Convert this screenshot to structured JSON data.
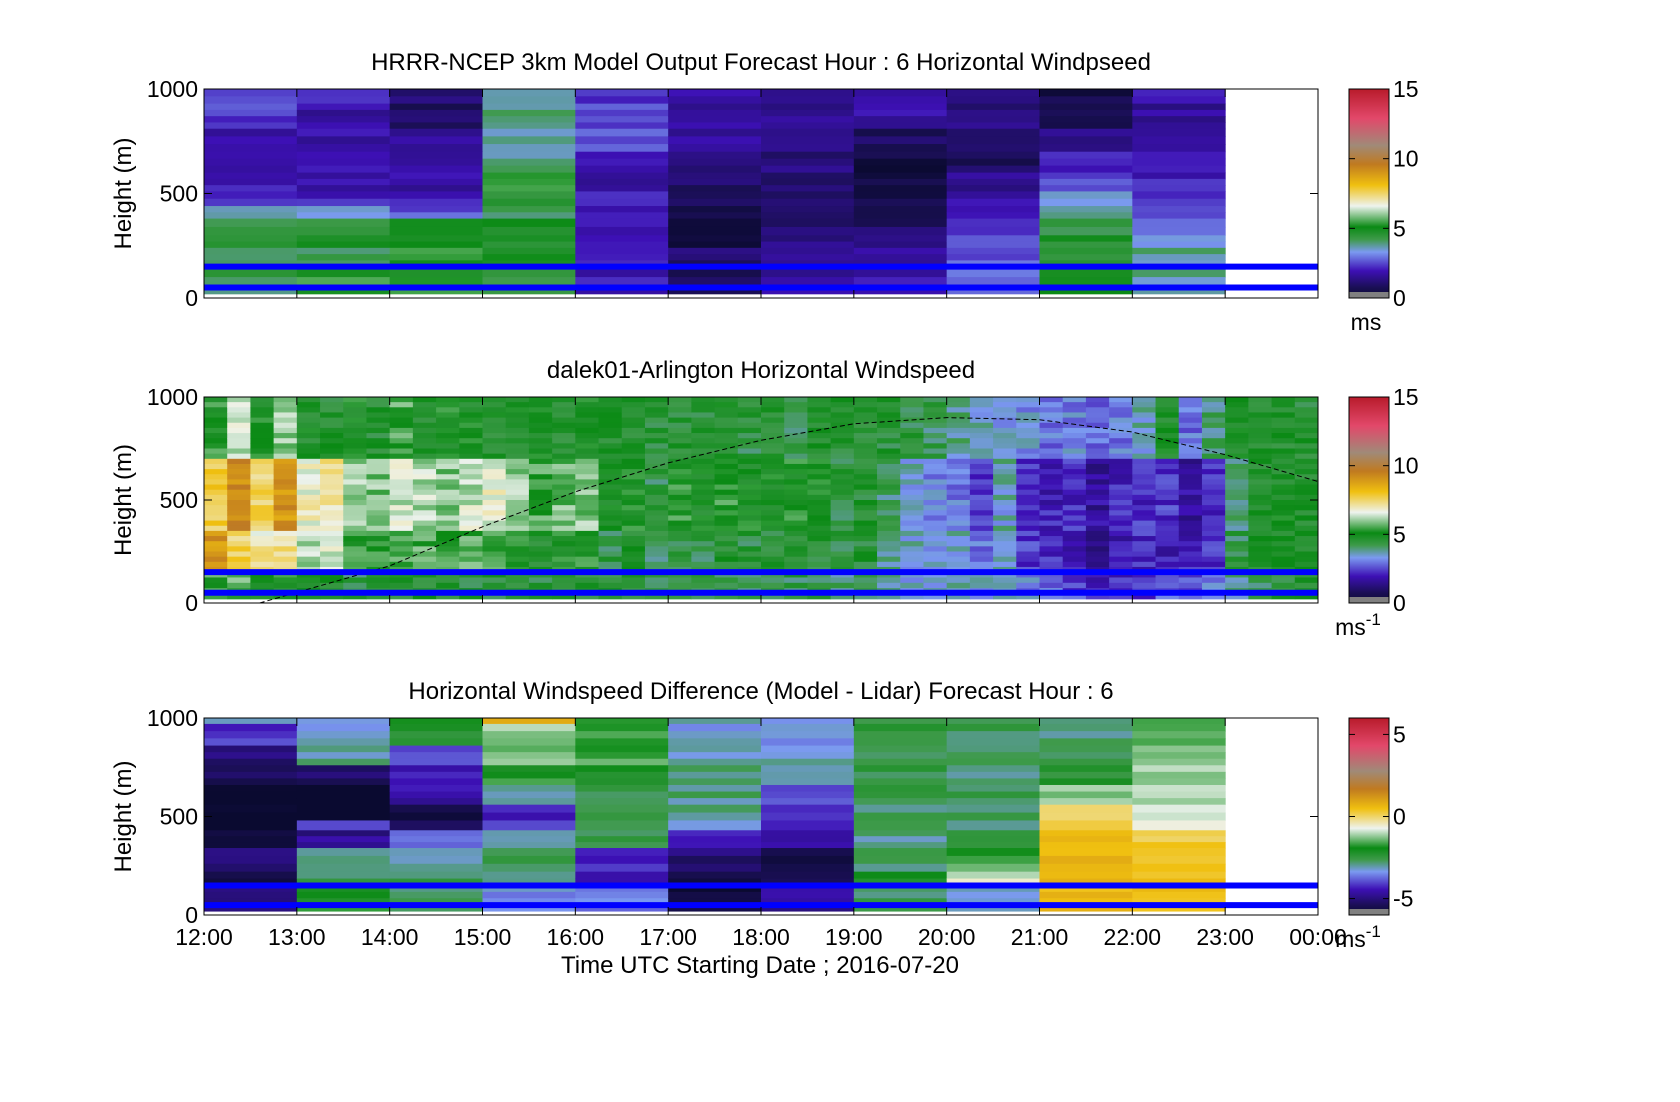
{
  "chart_data": [
    {
      "type": "heatmap",
      "title": "HRRR-NCEP 3km Model Output   Forecast Hour : 6 Horizontal Windpseed",
      "ylabel": "Height (m)",
      "yticks": [
        "1000",
        "500",
        "0"
      ],
      "ylim": [
        0,
        1000
      ],
      "xlim": [
        12,
        24
      ],
      "colorbar": {
        "ticks": [
          "15",
          "10",
          "5",
          "0"
        ],
        "range": [
          0,
          15
        ],
        "unit": "ms",
        "unit_sup": ""
      },
      "rows": [
        {
          "ymin": 930,
          "ymax": 1000,
          "values": [
            2.8,
            2.1,
            1.2,
            3.8,
            2.3,
            1.8,
            1.6,
            1.8,
            1.6,
            0.5,
            1.8
          ]
        },
        {
          "ymin": 810,
          "ymax": 930,
          "values": [
            2.4,
            1.8,
            0.9,
            3.8,
            2.6,
            1.6,
            1.5,
            1.7,
            1.2,
            0.5,
            1.6
          ]
        },
        {
          "ymin": 700,
          "ymax": 810,
          "values": [
            1.9,
            1.7,
            1.6,
            3.8,
            2.5,
            1.6,
            1.4,
            0.8,
            1.0,
            1.6,
            1.8
          ]
        },
        {
          "ymin": 600,
          "ymax": 700,
          "values": [
            1.8,
            1.7,
            1.9,
            3.8,
            1.9,
            1.3,
            1.3,
            0.4,
            0.8,
            1.9,
            1.9
          ]
        },
        {
          "ymin": 510,
          "ymax": 600,
          "values": [
            1.9,
            1.8,
            1.8,
            5.3,
            1.8,
            1.0,
            1.2,
            0.4,
            1.6,
            2.6,
            2.1
          ]
        },
        {
          "ymin": 440,
          "ymax": 510,
          "values": [
            2.1,
            2.0,
            2.2,
            4.7,
            1.9,
            0.9,
            1.1,
            0.5,
            1.9,
            3.6,
            2.3
          ]
        },
        {
          "ymin": 380,
          "ymax": 440,
          "values": [
            3.5,
            3.3,
            2.6,
            4.3,
            1.9,
            0.6,
            1.0,
            0.7,
            2.0,
            3.9,
            2.7
          ]
        },
        {
          "ymin": 300,
          "ymax": 380,
          "values": [
            4.4,
            4.3,
            5.0,
            4.7,
            1.9,
            0.4,
            1.1,
            1.0,
            2.2,
            4.2,
            3.0
          ]
        },
        {
          "ymin": 240,
          "ymax": 300,
          "values": [
            4.6,
            4.6,
            5.0,
            4.8,
            1.8,
            0.0,
            1.4,
            1.5,
            2.6,
            4.7,
            3.5
          ]
        },
        {
          "ymin": 150,
          "ymax": 240,
          "values": [
            4.0,
            4.3,
            5.2,
            4.8,
            2.0,
            1.0,
            1.5,
            1.6,
            2.7,
            4.6,
            3.8
          ]
        },
        {
          "ymin": 100,
          "ymax": 150,
          "values": [
            4.2,
            5.0,
            5.0,
            4.5,
            1.9,
            0.6,
            1.6,
            1.7,
            2.8,
            4.7,
            3.9
          ]
        },
        {
          "ymin": 20,
          "ymax": 100,
          "values": [
            3.8,
            5.3,
            5.4,
            4.0,
            2.0,
            1.0,
            1.7,
            1.9,
            3.0,
            4.8,
            3.6
          ]
        }
      ],
      "hlines": [
        150,
        50
      ],
      "hline_color": "#0000ff",
      "nan_color": "#ffffff",
      "show_xticklabels": false
    },
    {
      "type": "heatmap",
      "title": "dalek01-Arlington  Horizontal Windspeed",
      "ylabel": "Height (m)",
      "yticks": [
        "1000",
        "500",
        "0"
      ],
      "ylim": [
        0,
        1000
      ],
      "xlim": [
        12,
        24
      ],
      "colorbar": {
        "ticks": [
          "15",
          "10",
          "5",
          "0"
        ],
        "range": [
          0,
          15
        ],
        "unit": "ms",
        "unit_sup": "-1"
      },
      "columns_x": [
        "12:00",
        "12:15",
        "12:30",
        "12:45",
        "13:00",
        "13:15",
        "13:30",
        "13:45",
        "14:00",
        "14:15",
        "14:30",
        "14:45",
        "15:00",
        "15:15",
        "15:30",
        "15:45",
        "16:00",
        "16:15",
        "16:30",
        "16:45",
        "17:00",
        "17:15",
        "17:30",
        "17:45",
        "18:00",
        "18:15",
        "18:30",
        "18:45",
        "19:00",
        "19:15",
        "19:30",
        "19:45",
        "20:00",
        "20:15",
        "20:30",
        "20:45",
        "21:00",
        "21:15",
        "21:30",
        "21:45",
        "22:00",
        "22:15",
        "22:30",
        "22:45",
        "23:00",
        "23:15",
        "23:30",
        "23:45"
      ],
      "layers": [
        {
          "ymin": 700,
          "ymax": 1000,
          "values": [
            5.2,
            6.4,
            5.0,
            6.0,
            4.8,
            4.6,
            5.0,
            4.6,
            5.5,
            4.7,
            5.0,
            4.9,
            4.7,
            4.8,
            4.9,
            4.7,
            4.9,
            4.6,
            4.7,
            4.5,
            4.6,
            4.5,
            4.8,
            4.4,
            4.7,
            4.3,
            4.8,
            4.6,
            4.5,
            4.5,
            4.4,
            4.2,
            3.8,
            3.5,
            3.3,
            3.3,
            2.9,
            3.1,
            2.8,
            3.0,
            3.5,
            4.8,
            2.9,
            4.0,
            4.9,
            4.6,
            4.7,
            4.6
          ]
        },
        {
          "ymin": 350,
          "ymax": 700,
          "values": [
            7.8,
            9.2,
            7.5,
            9.0,
            6.8,
            7.2,
            6.0,
            5.9,
            6.4,
            6.2,
            5.9,
            6.3,
            6.6,
            6.0,
            5.5,
            5.8,
            5.9,
            4.8,
            5.1,
            4.3,
            5.2,
            4.9,
            5.3,
            5.0,
            4.9,
            5.1,
            5.0,
            4.4,
            4.6,
            4.1,
            3.6,
            3.2,
            3.0,
            2.4,
            3.6,
            2.1,
            2.0,
            2.2,
            1.6,
            2.1,
            2.2,
            2.3,
            1.7,
            2.2,
            3.8,
            4.6,
            4.8,
            4.6
          ]
        },
        {
          "ymin": 150,
          "ymax": 350,
          "values": [
            9.0,
            7.6,
            7.0,
            7.2,
            6.2,
            6.4,
            5.3,
            5.4,
            5.6,
            5.5,
            5.6,
            5.5,
            5.7,
            5.2,
            4.8,
            5.0,
            5.2,
            4.4,
            4.6,
            4.2,
            4.5,
            4.2,
            4.6,
            4.4,
            4.6,
            4.5,
            4.6,
            4.3,
            4.6,
            3.8,
            3.5,
            3.3,
            3.6,
            2.9,
            3.5,
            2.3,
            2.2,
            2.0,
            1.4,
            2.0,
            2.2,
            2.0,
            2.0,
            2.2,
            4.3,
            4.6,
            4.8,
            4.7
          ]
        },
        {
          "ymin": 20,
          "ymax": 150,
          "values": [
            5.4,
            5.6,
            5.0,
            5.0,
            4.8,
            4.6,
            4.3,
            4.5,
            4.7,
            4.6,
            4.5,
            4.5,
            4.5,
            4.3,
            4.4,
            4.4,
            4.6,
            4.5,
            4.4,
            4.3,
            4.4,
            4.4,
            4.3,
            4.3,
            4.4,
            4.3,
            4.2,
            4.0,
            3.9,
            3.6,
            3.4,
            3.6,
            3.8,
            3.5,
            3.4,
            3.2,
            2.9,
            2.5,
            2.0,
            2.2,
            2.3,
            2.9,
            2.7,
            3.0,
            3.8,
            4.3,
            4.5,
            4.6
          ]
        }
      ],
      "hlines": [
        150,
        50
      ],
      "hline_color": "#0000ff",
      "nan_color": "#ffffff",
      "show_xticklabels": false,
      "curve": {
        "style": "dashed",
        "points": [
          [
            12.6,
            0
          ],
          [
            14,
            180
          ],
          [
            15,
            370
          ],
          [
            16,
            540
          ],
          [
            17,
            680
          ],
          [
            18,
            790
          ],
          [
            19,
            870
          ],
          [
            20,
            900
          ],
          [
            21,
            890
          ],
          [
            22,
            830
          ],
          [
            23,
            720
          ],
          [
            24,
            590
          ]
        ]
      }
    },
    {
      "type": "heatmap",
      "title": "Horizontal Windspeed Difference (Model - Lidar) Forecast Hour : 6",
      "ylabel": "Height (m)",
      "xlabel": "Time UTC  Starting Date ; 2016-07-20",
      "yticks": [
        "1000",
        "500",
        "0"
      ],
      "ylim": [
        0,
        1000
      ],
      "xlim": [
        12,
        24
      ],
      "xticks": [
        "12:00",
        "13:00",
        "14:00",
        "15:00",
        "16:00",
        "17:00",
        "18:00",
        "19:00",
        "20:00",
        "21:00",
        "22:00",
        "23:00",
        "00:00"
      ],
      "colorbar": {
        "ticks": [
          "5",
          "0",
          "-5"
        ],
        "range": [
          -6,
          6
        ],
        "unit": "ms",
        "unit_sup": "-1"
      },
      "rows": [
        {
          "ymin": 970,
          "ymax": 1000,
          "values": [
            -3.2,
            -3.4,
            -1.6,
            0.6,
            -1.9,
            -3.2,
            -3.3,
            -2.4,
            -2.6,
            -2.9,
            -1.6
          ]
        },
        {
          "ymin": 860,
          "ymax": 970,
          "values": [
            -4.2,
            -3.2,
            -2.2,
            -1.1,
            -1.8,
            -3.3,
            -3.3,
            -2.5,
            -2.6,
            -2.9,
            -1.5
          ]
        },
        {
          "ymin": 760,
          "ymax": 860,
          "values": [
            -5.1,
            -3.0,
            -4.0,
            -1.4,
            -1.6,
            -3.1,
            -3.2,
            -2.7,
            -2.8,
            -2.7,
            -1.3
          ]
        },
        {
          "ymin": 660,
          "ymax": 760,
          "values": [
            -5.3,
            -5.2,
            -4.5,
            -1.9,
            -2.2,
            -2.9,
            -3.2,
            -2.6,
            -2.9,
            -2.4,
            -1.2
          ]
        },
        {
          "ymin": 560,
          "ymax": 660,
          "values": [
            -6.2,
            -6.6,
            -4.6,
            -3.0,
            -2.6,
            -2.9,
            -3.8,
            -2.6,
            -2.6,
            -1.2,
            -1.0
          ]
        },
        {
          "ymin": 480,
          "ymax": 560,
          "values": [
            -6.0,
            -7.0,
            -5.6,
            -4.3,
            -2.8,
            -3.0,
            -4.3,
            -2.8,
            -2.8,
            0.2,
            -0.9
          ]
        },
        {
          "ymin": 430,
          "ymax": 480,
          "values": [
            -7.0,
            -4.1,
            -5.5,
            -3.8,
            -2.7,
            -3.2,
            -4.2,
            -2.9,
            -2.8,
            0.4,
            -0.7
          ]
        },
        {
          "ymin": 340,
          "ymax": 430,
          "values": [
            -5.9,
            -4.8,
            -3.7,
            -3.2,
            -2.7,
            -4.3,
            -4.4,
            -2.9,
            -2.5,
            0.5,
            0.3
          ]
        },
        {
          "ymin": 220,
          "ymax": 340,
          "values": [
            -5.2,
            -3.0,
            -3.0,
            -2.7,
            -4.3,
            -5.1,
            -5.6,
            -2.8,
            -1.6,
            0.6,
            0.5
          ]
        },
        {
          "ymin": 150,
          "ymax": 220,
          "values": [
            -5.5,
            -2.6,
            -2.7,
            -3.0,
            -4.5,
            -5.8,
            -5.2,
            -2.2,
            -0.8,
            0.8,
            0.4
          ]
        },
        {
          "ymin": 20,
          "ymax": 150,
          "values": [
            -4.8,
            -2.0,
            -2.7,
            -3.4,
            -3.6,
            -5.9,
            -4.8,
            -2.7,
            -3.2,
            0.7,
            0.5
          ]
        }
      ],
      "hlines": [
        150,
        50
      ],
      "hline_color": "#0000ff",
      "nan_color": "#ffffff",
      "show_xticklabels": true
    }
  ]
}
